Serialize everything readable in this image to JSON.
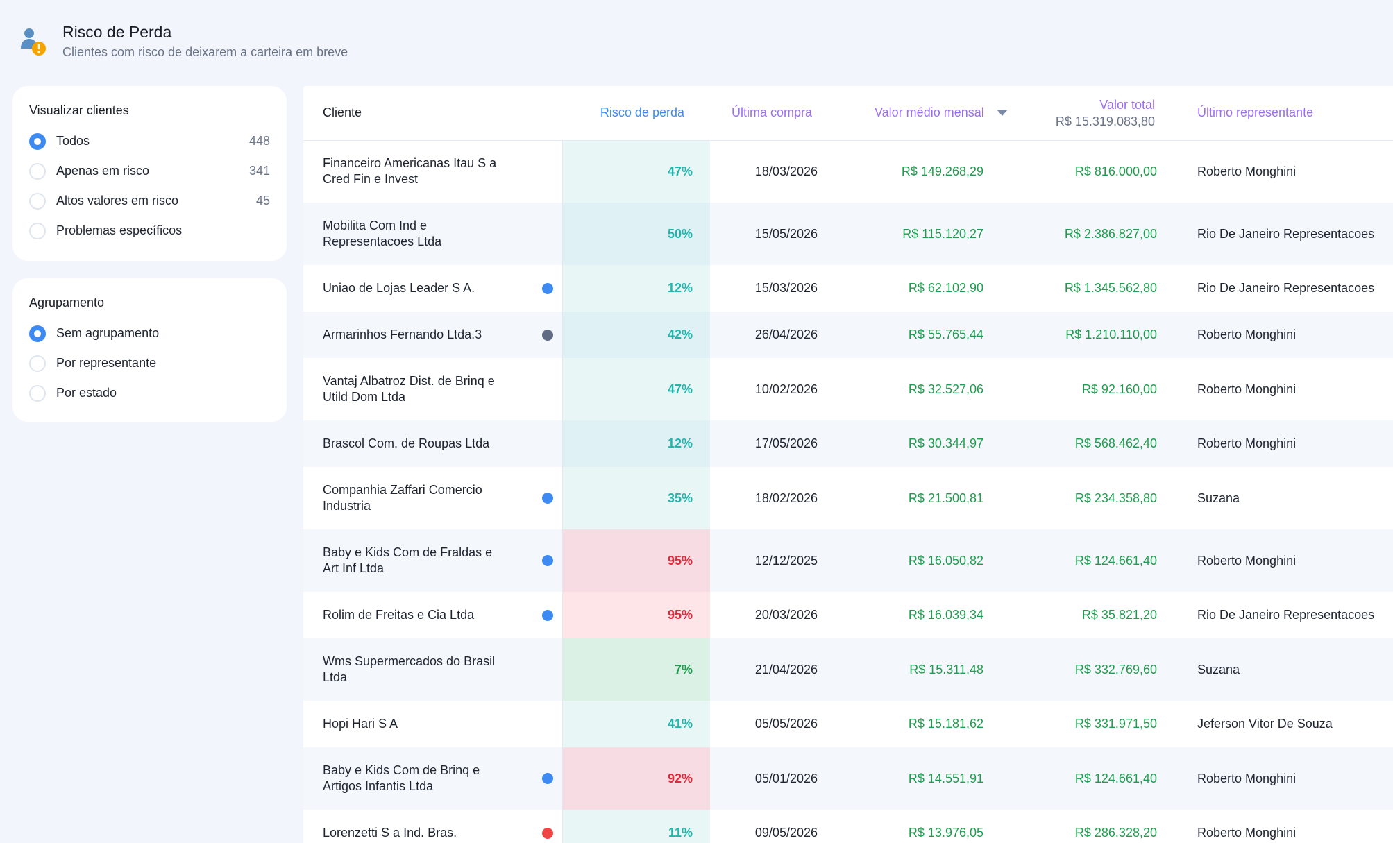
{
  "header": {
    "title": "Risco de Perda",
    "subtitle": "Clientes com risco de deixarem a carteira em breve"
  },
  "filter_panel": {
    "title": "Visualizar clientes",
    "options": [
      {
        "label": "Todos",
        "count": "448",
        "checked": true
      },
      {
        "label": "Apenas em risco",
        "count": "341",
        "checked": false
      },
      {
        "label": "Altos valores em risco",
        "count": "45",
        "checked": false
      },
      {
        "label": "Problemas específicos",
        "count": "",
        "checked": false
      }
    ]
  },
  "group_panel": {
    "title": "Agrupamento",
    "options": [
      {
        "label": "Sem agrupamento",
        "checked": true
      },
      {
        "label": "Por representante",
        "checked": false
      },
      {
        "label": "Por estado",
        "checked": false
      }
    ]
  },
  "table": {
    "headers": {
      "client": "Cliente",
      "risk": "Risco de perda",
      "last_purchase": "Última compra",
      "avg_monthly": "Valor médio mensal",
      "total": "Valor total",
      "total_sum": "R$ 15.319.083,80",
      "last_rep": "Último representante"
    },
    "colors": {
      "risk_teal_text": "#22b5ac",
      "risk_red_text": "#e0293a",
      "risk_green_text": "#1f9d4e",
      "dot_blue": "#3d8bf2",
      "dot_gray": "#5f6b82",
      "dot_red": "#ef4444",
      "money_green": "#1f9d4e"
    },
    "rows": [
      {
        "client": "Financeiro Americanas Itau S a Cred Fin e Invest",
        "dot": "",
        "risk": "47%",
        "level": "teal",
        "last_purchase": "18/03/2026",
        "avg_monthly": "R$ 149.268,29",
        "total": "R$ 816.000,00",
        "rep": "Roberto Monghini"
      },
      {
        "client": "Mobilita Com Ind e Representacoes Ltda",
        "dot": "",
        "risk": "50%",
        "level": "teal",
        "last_purchase": "15/05/2026",
        "avg_monthly": "R$ 115.120,27",
        "total": "R$ 2.386.827,00",
        "rep": "Rio De Janeiro Representacoes"
      },
      {
        "client": "Uniao de Lojas Leader S A.",
        "dot": "blue",
        "risk": "12%",
        "level": "teal",
        "last_purchase": "15/03/2026",
        "avg_monthly": "R$ 62.102,90",
        "total": "R$ 1.345.562,80",
        "rep": "Rio De Janeiro Representacoes"
      },
      {
        "client": "Armarinhos Fernando Ltda.3",
        "dot": "gray",
        "risk": "42%",
        "level": "teal",
        "last_purchase": "26/04/2026",
        "avg_monthly": "R$ 55.765,44",
        "total": "R$ 1.210.110,00",
        "rep": "Roberto Monghini"
      },
      {
        "client": "Vantaj Albatroz Dist. de Brinq e Utild Dom Ltda",
        "dot": "",
        "risk": "47%",
        "level": "teal",
        "last_purchase": "10/02/2026",
        "avg_monthly": "R$ 32.527,06",
        "total": "R$ 92.160,00",
        "rep": "Roberto Monghini"
      },
      {
        "client": "Brascol Com. de Roupas Ltda",
        "dot": "",
        "risk": "12%",
        "level": "teal",
        "last_purchase": "17/05/2026",
        "avg_monthly": "R$ 30.344,97",
        "total": "R$ 568.462,40",
        "rep": "Roberto Monghini"
      },
      {
        "client": "Companhia Zaffari Comercio Industria",
        "dot": "blue",
        "risk": "35%",
        "level": "teal",
        "last_purchase": "18/02/2026",
        "avg_monthly": "R$ 21.500,81",
        "total": "R$ 234.358,80",
        "rep": "Suzana"
      },
      {
        "client": "Baby e Kids Com de Fraldas e Art Inf Ltda",
        "dot": "blue",
        "risk": "95%",
        "level": "red",
        "last_purchase": "12/12/2025",
        "avg_monthly": "R$ 16.050,82",
        "total": "R$ 124.661,40",
        "rep": "Roberto Monghini"
      },
      {
        "client": "Rolim de Freitas e Cia Ltda",
        "dot": "blue",
        "risk": "95%",
        "level": "red",
        "last_purchase": "20/03/2026",
        "avg_monthly": "R$ 16.039,34",
        "total": "R$ 35.821,20",
        "rep": "Rio De Janeiro Representacoes"
      },
      {
        "client": "Wms Supermercados do Brasil Ltda",
        "dot": "",
        "risk": "7%",
        "level": "green",
        "last_purchase": "21/04/2026",
        "avg_monthly": "R$ 15.311,48",
        "total": "R$ 332.769,60",
        "rep": "Suzana"
      },
      {
        "client": "Hopi Hari S A",
        "dot": "",
        "risk": "41%",
        "level": "teal",
        "last_purchase": "05/05/2026",
        "avg_monthly": "R$ 15.181,62",
        "total": "R$ 331.971,50",
        "rep": "Jeferson Vitor De Souza"
      },
      {
        "client": "Baby e Kids Com de Brinq e Artigos Infantis Ltda",
        "dot": "blue",
        "risk": "92%",
        "level": "red",
        "last_purchase": "05/01/2026",
        "avg_monthly": "R$ 14.551,91",
        "total": "R$ 124.661,40",
        "rep": "Roberto Monghini"
      },
      {
        "client": "Lorenzetti S a Ind. Bras.",
        "dot": "red",
        "risk": "11%",
        "level": "teal",
        "last_purchase": "09/05/2026",
        "avg_monthly": "R$ 13.976,05",
        "total": "R$ 286.328,20",
        "rep": "Roberto Monghini"
      }
    ]
  }
}
